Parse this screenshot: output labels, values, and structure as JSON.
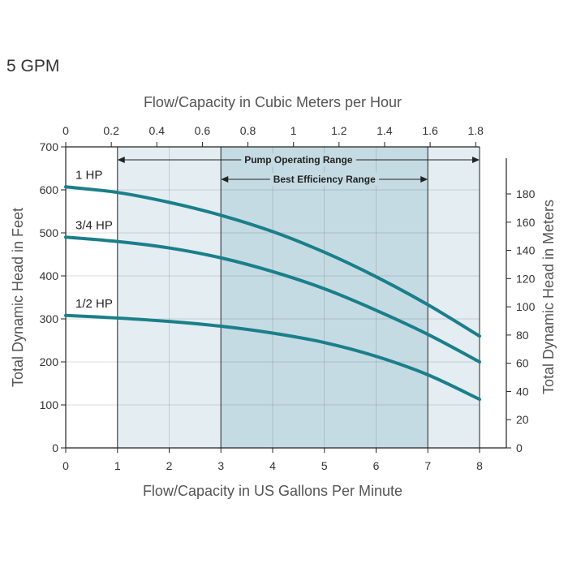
{
  "page_title": "5 GPM",
  "chart_data": {
    "type": "line",
    "x_axis": {
      "label": "Flow/Capacity in US Gallons Per Minute",
      "range": [
        0,
        8
      ],
      "ticks": [
        0,
        1,
        2,
        3,
        4,
        5,
        6,
        7,
        8
      ]
    },
    "x2_axis": {
      "label": "Flow/Capacity in Cubic Meters per Hour",
      "ticks": [
        "0",
        "0.2",
        "0.4",
        "0.6",
        "0.8",
        "1",
        "1.2",
        "1.4",
        "1.6",
        "1.8"
      ],
      "tick_gpm": [
        0,
        0.8806,
        1.7611,
        2.6417,
        3.5223,
        4.4029,
        5.2834,
        6.164,
        7.0446,
        7.9252
      ]
    },
    "y_axis": {
      "label": "Total Dynamic Head in Feet",
      "range": [
        0,
        700
      ],
      "ticks": [
        0,
        100,
        200,
        300,
        400,
        500,
        600,
        700
      ]
    },
    "y2_axis": {
      "label": "Total Dynamic Head in Meters",
      "ticks": [
        0,
        20,
        40,
        60,
        80,
        100,
        120,
        140,
        160,
        180
      ]
    },
    "ranges": [
      {
        "label": "Pump Operating Range",
        "from": 1,
        "to": 8
      },
      {
        "label": "Best Efficiency Range",
        "from": 3,
        "to": 7
      }
    ],
    "series": [
      {
        "name": "1 HP",
        "x": [
          0,
          1,
          2,
          3,
          4,
          5,
          6,
          7,
          8
        ],
        "y": [
          607,
          594,
          571,
          541,
          503,
          455,
          398,
          333,
          260
        ]
      },
      {
        "name": "3/4 HP",
        "x": [
          0,
          1,
          2,
          3,
          4,
          5,
          6,
          7,
          8
        ],
        "y": [
          490,
          480,
          465,
          442,
          410,
          370,
          320,
          264,
          200
        ]
      },
      {
        "name": "1/2 HP",
        "x": [
          0,
          1,
          2,
          3,
          4,
          5,
          6,
          7,
          8
        ],
        "y": [
          308,
          302,
          294,
          283,
          267,
          245,
          213,
          170,
          113
        ]
      }
    ],
    "colors": {
      "curve": "#1a7f8a",
      "operating_fill": "#e3edf2",
      "efficiency_fill": "#c5dbe3",
      "grid": "#333333"
    },
    "grid": true
  }
}
